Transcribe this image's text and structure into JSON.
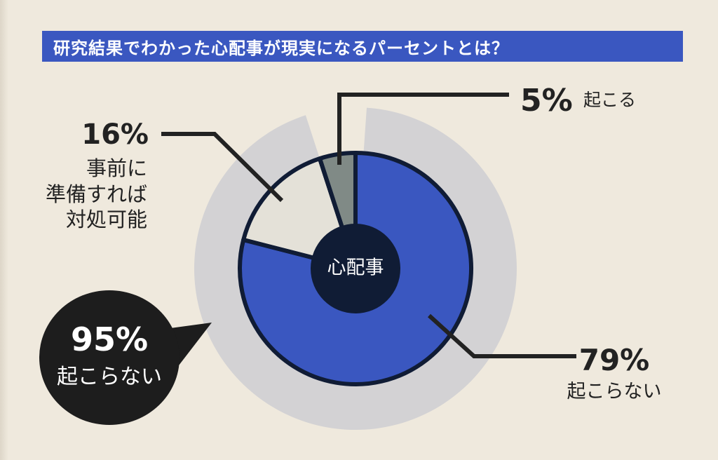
{
  "title": "研究結果でわかった心配事が現実になるパーセントとは？",
  "chart_data": {
    "type": "pie",
    "center_label": "心配事",
    "slices": [
      {
        "value": 79,
        "percent_label": "79%",
        "label": "起こらない",
        "color": "#3a57c0"
      },
      {
        "value": 5,
        "percent_label": "5%",
        "label": "起こる",
        "color": "#808a86"
      },
      {
        "value": 16,
        "percent_label": "16%",
        "label_lines": [
          "事前に",
          "準備すれば",
          "対処可能"
        ],
        "color": "#e4e1d8"
      }
    ],
    "summary": {
      "value": 95,
      "percent_label": "95%",
      "label": "起こらない"
    }
  },
  "colors": {
    "background": "#efe9dd",
    "outer_ring": "#d3d2d4",
    "center": "#101c35",
    "title_bar": "#3a57c0"
  }
}
